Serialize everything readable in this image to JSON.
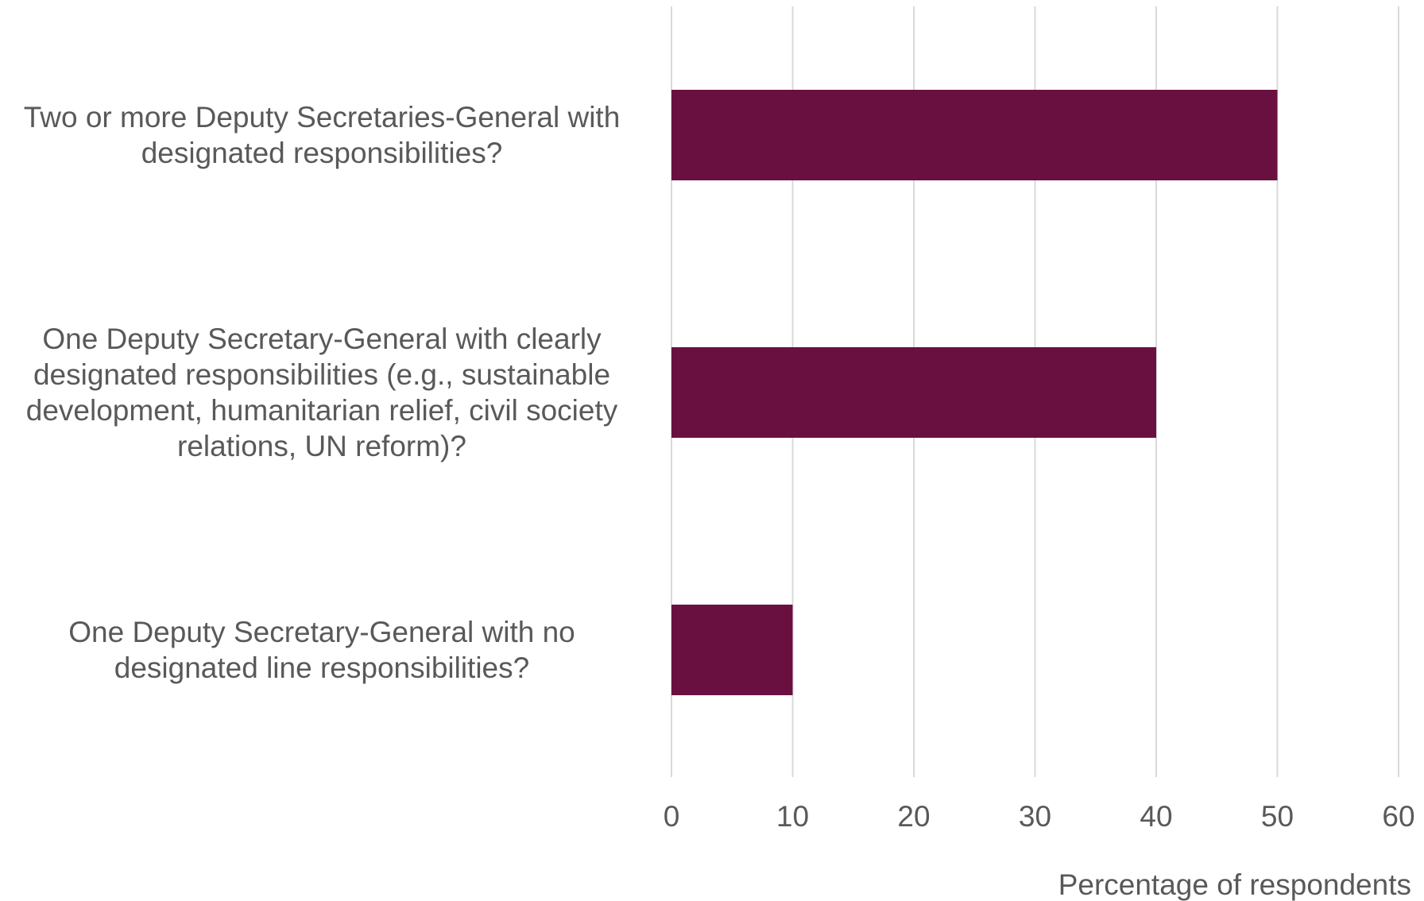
{
  "chart_data": {
    "type": "bar",
    "orientation": "horizontal",
    "categories": [
      "Two or more Deputy Secretaries-General with designated responsibilities?",
      "One Deputy Secretary-General with clearly designated responsibilities (e.g., sustainable development, humanitarian relief, civil society relations, UN reform)?",
      "One Deputy Secretary-General with no designated line responsibilities?"
    ],
    "values": [
      50,
      40,
      10
    ],
    "xlabel": "Percentage of respondents",
    "xlim": [
      0,
      60
    ],
    "xticks": [
      "0",
      "10",
      "20",
      "30",
      "40",
      "50",
      "60"
    ],
    "grid": "vertical",
    "bar_color": "#6a1040",
    "grid_color": "#d9d9d9",
    "text_color": "#595959"
  }
}
